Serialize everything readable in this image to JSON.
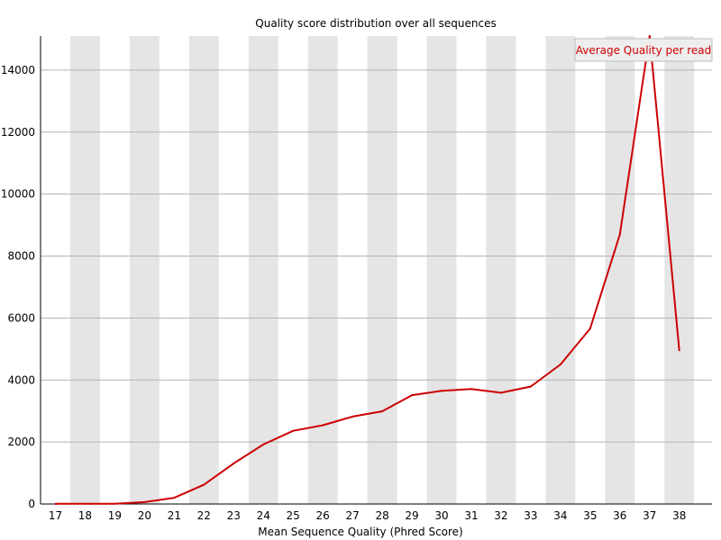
{
  "chart_data": {
    "type": "line",
    "title": "Quality score distribution over all sequences",
    "xlabel": "Mean Sequence Quality (Phred Score)",
    "ylabel": "",
    "categories": [
      "17",
      "18",
      "19",
      "20",
      "21",
      "22",
      "23",
      "24",
      "25",
      "26",
      "27",
      "28",
      "29",
      "30",
      "31",
      "32",
      "33",
      "34",
      "35",
      "36",
      "37",
      "38"
    ],
    "yticks": [
      0,
      2000,
      4000,
      6000,
      8000,
      10000,
      12000,
      14000
    ],
    "ylim": [
      0,
      15100
    ],
    "grid": "horizontal",
    "band_fill": "#e5e5e5",
    "legend_position": "top-right",
    "series": [
      {
        "name": "Average Quality per read",
        "color": "#cc0000",
        "values": [
          5,
          10,
          10,
          60,
          200,
          620,
          1310,
          1920,
          2360,
          2540,
          2820,
          2990,
          3510,
          3650,
          3710,
          3590,
          3790,
          4500,
          5660,
          8700,
          15100,
          4960
        ]
      }
    ]
  }
}
